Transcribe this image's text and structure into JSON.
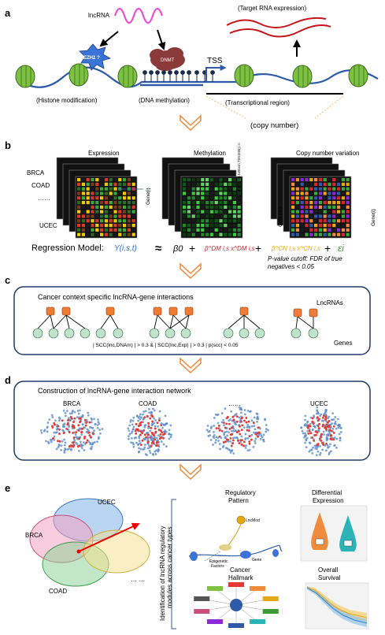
{
  "panels": {
    "a": {
      "letter": "a",
      "lncrna": "lncRNA",
      "ezh2": "EZH2 ?",
      "dnmt": "DNMT",
      "tss": "TSS",
      "target_expr": "(Target RNA expression)",
      "histone": "(Histone modification)",
      "dna_meth": "(DNA methylation)",
      "transcriptional": "(Transcriptional region)",
      "copy_number": "(copy number)"
    },
    "b": {
      "letter": "b",
      "expression": "Expression",
      "methylation": "Methylation",
      "cnv": "Copy number variation",
      "cancers": [
        "BRCA",
        "COAD",
        "……",
        "UCEC"
      ],
      "gene_i_left": "Gene(i)",
      "gene_i_right": "Gene(i)",
      "cpg": "CpG (m)",
      "formula_vertical": "β(i) = ∑β(m,TSS200,1stExon,TSS1500) / n",
      "regression_label": "Regression Model:",
      "y_term": "Y(i,s,t)",
      "approx": "≈",
      "beta0": "β0",
      "plus": "+",
      "dm_term": "β^DM i,s x^DM i,s",
      "cn_term": "β^CN i,s x^CN i,s",
      "eps": "εi",
      "pvalue_note_line1": "P-value cutoff: FDR of true",
      "pvalue_note_line2": "negatives < 0.05"
    },
    "c": {
      "letter": "c",
      "title": "Cancer context specific lncRNA-gene interactions",
      "lncrnas": "LncRNAs",
      "genes": "Genes",
      "criteria": "| SCC(lnc,DNAm) | > 0.3 & | SCC(lnc,Exp) | > 0.3 | p(scc) < 0.05"
    },
    "d": {
      "letter": "d",
      "title": "Construction of lncRNA-gene interaction network",
      "networks": [
        "BRCA",
        "COAD",
        "……",
        "UCEC"
      ]
    },
    "e": {
      "letter": "e",
      "venn": [
        "UCEC",
        "BRCA",
        "COAD",
        "… …"
      ],
      "identification_line1": "Identification of lncRNA regulatory",
      "identification_line2": "modules across cancer types",
      "regulatory_pattern_line1": "Regulatory",
      "regulatory_pattern_line2": "Pattern",
      "differential_line1": "Differential",
      "differential_line2": "Expression",
      "hallmark_line1": "Cancer",
      "hallmark_line2": "Hallmark",
      "survival_line1": "Overall",
      "survival_line2": "Survival",
      "lncmod": "LncMod",
      "epigenetic": "Epigenetic",
      "factors": "Factors",
      "gene": "Gene"
    }
  },
  "colors": {
    "nucleosome": "#7cc242",
    "dna": "#2e5aa8",
    "lncrna": "#e94fd6",
    "target_rna": "#c4161c",
    "ezh2": "#3b73d6",
    "dnmt": "#8b3a3a",
    "arrow_orange": "#f08a3c",
    "panel_border": "#24386b",
    "lnc_node": "#ef7c36",
    "gene_node": "#bfe3cb",
    "net_red": "#e53935",
    "net_blue": "#5b8dc9",
    "y_term": "#2f6fd0",
    "dm_term": "#d6262f",
    "cn_term": "#e7a614",
    "eps_term": "#3c9a34"
  }
}
